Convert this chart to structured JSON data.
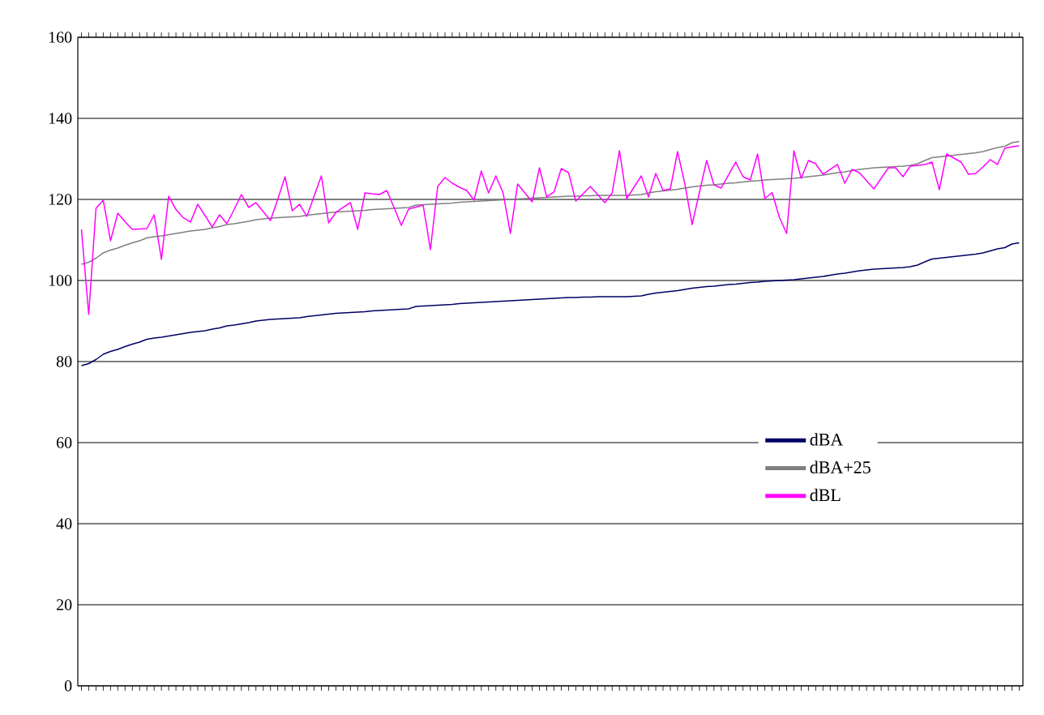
{
  "chart_data": {
    "type": "line",
    "categories": [
      null,
      null,
      null,
      null,
      null,
      null,
      null,
      null,
      null,
      null,
      null,
      null,
      null,
      null,
      null,
      null,
      null,
      null,
      null,
      null,
      null,
      null,
      null,
      null,
      null,
      null,
      null,
      null,
      null,
      null,
      null,
      null,
      null,
      null,
      null,
      null,
      null,
      null,
      null,
      null,
      null,
      null,
      null,
      null,
      null,
      null,
      null,
      null,
      null,
      null,
      null,
      null,
      null,
      null,
      null,
      null,
      null,
      null,
      null,
      null,
      null,
      null,
      null,
      null,
      null,
      null,
      null,
      null,
      null,
      null,
      null,
      null,
      null,
      null,
      null,
      null,
      null,
      null,
      null,
      null,
      null,
      null,
      null,
      null,
      null,
      null,
      null,
      null,
      null,
      null,
      null,
      null,
      null,
      null,
      null,
      null,
      null,
      null,
      null,
      null,
      null,
      null,
      null,
      null,
      null,
      null,
      null,
      null,
      null,
      null,
      null,
      null,
      null,
      null,
      null,
      null,
      null,
      null,
      null,
      null,
      null,
      null,
      null,
      null,
      null,
      null,
      null,
      null,
      null,
      null
    ],
    "series": [
      {
        "name": "dBA",
        "color": "#000066",
        "values": [
          79,
          79.5,
          80.5,
          81.8,
          82.5,
          83,
          83.7,
          84.3,
          84.8,
          85.5,
          85.8,
          86,
          86.3,
          86.6,
          86.9,
          87.2,
          87.4,
          87.6,
          88,
          88.3,
          88.8,
          89,
          89.3,
          89.6,
          90,
          90.2,
          90.4,
          90.5,
          90.6,
          90.7,
          90.8,
          91.1,
          91.3,
          91.5,
          91.7,
          91.9,
          92,
          92.1,
          92.2,
          92.3,
          92.5,
          92.6,
          92.7,
          92.8,
          92.9,
          93,
          93.6,
          93.7,
          93.8,
          93.9,
          94,
          94.1,
          94.3,
          94.4,
          94.5,
          94.6,
          94.7,
          94.8,
          94.9,
          95,
          95.1,
          95.2,
          95.3,
          95.4,
          95.5,
          95.6,
          95.7,
          95.8,
          95.8,
          95.9,
          95.9,
          96,
          96,
          96,
          96,
          96,
          96.1,
          96.2,
          96.6,
          96.9,
          97.1,
          97.3,
          97.5,
          97.8,
          98.1,
          98.3,
          98.5,
          98.6,
          98.8,
          99,
          99.1,
          99.3,
          99.5,
          99.6,
          99.8,
          99.9,
          100,
          100.1,
          100.2,
          100.4,
          100.6,
          100.8,
          101,
          101.3,
          101.6,
          101.8,
          102.1,
          102.4,
          102.6,
          102.8,
          102.9,
          103,
          103.1,
          103.2,
          103.4,
          103.8,
          104.6,
          105.3,
          105.5,
          105.7,
          105.9,
          106.1,
          106.3,
          106.5,
          106.8,
          107.3,
          107.8,
          108.1,
          109,
          109.3
        ]
      },
      {
        "name": "dBA+25",
        "color": "#808080",
        "values": [
          104,
          104.5,
          105.5,
          106.8,
          107.5,
          108,
          108.7,
          109.3,
          109.8,
          110.5,
          110.8,
          111,
          111.3,
          111.6,
          111.9,
          112.2,
          112.4,
          112.6,
          113,
          113.3,
          113.8,
          114,
          114.3,
          114.6,
          115,
          115.2,
          115.4,
          115.5,
          115.6,
          115.7,
          115.8,
          116.1,
          116.3,
          116.5,
          116.7,
          116.9,
          117,
          117.1,
          117.2,
          117.3,
          117.5,
          117.6,
          117.7,
          117.8,
          117.9,
          118,
          118.6,
          118.7,
          118.8,
          118.9,
          119,
          119.1,
          119.3,
          119.4,
          119.5,
          119.6,
          119.7,
          119.8,
          119.9,
          120,
          120.1,
          120.2,
          120.3,
          120.4,
          120.5,
          120.6,
          120.7,
          120.8,
          120.8,
          120.9,
          120.9,
          121,
          121,
          121,
          121,
          121,
          121.1,
          121.2,
          121.6,
          121.9,
          122.1,
          122.3,
          122.5,
          122.8,
          123.1,
          123.3,
          123.5,
          123.6,
          123.8,
          124,
          124.1,
          124.3,
          124.5,
          124.6,
          124.8,
          124.9,
          125,
          125.1,
          125.2,
          125.4,
          125.6,
          125.8,
          126,
          126.3,
          126.6,
          126.8,
          127.1,
          127.4,
          127.6,
          127.8,
          127.9,
          128,
          128.1,
          128.2,
          128.4,
          128.8,
          129.6,
          130.3,
          130.5,
          130.7,
          130.9,
          131.1,
          131.3,
          131.5,
          131.8,
          132.3,
          132.8,
          133.1,
          134,
          134.3
        ]
      },
      {
        "name": "dBL",
        "color": "#ff00ff",
        "values": [
          112.6,
          91.6,
          117.8,
          119.8,
          109.8,
          116.6,
          114.5,
          112.6,
          112.7,
          112.8,
          116.2,
          105.2,
          120.8,
          117.5,
          115.5,
          114.4,
          118.8,
          116,
          113.2,
          116.2,
          114,
          117.5,
          121.2,
          118,
          119.2,
          117,
          114.8,
          120,
          125.6,
          117.2,
          118.8,
          115.8,
          120.8,
          125.8,
          114.2,
          116.8,
          118,
          119.2,
          112.6,
          121.6,
          121.4,
          121.2,
          122.2,
          118,
          113.6,
          117.6,
          118.1,
          118.6,
          107.6,
          123.2,
          125.4,
          124,
          123,
          122.2,
          119.8,
          127,
          121.6,
          125.8,
          121.6,
          111.6,
          123.8,
          121.6,
          119.4,
          127.8,
          120.6,
          121.8,
          127.6,
          126.6,
          119.6,
          121.4,
          123.2,
          121.2,
          119.2,
          121.6,
          132,
          120.2,
          123,
          125.8,
          120.6,
          126.4,
          122.2,
          122.6,
          131.8,
          123.8,
          113.8,
          121.7,
          129.6,
          123.6,
          122.8,
          126,
          129.2,
          125.6,
          124.8,
          131.2,
          120.2,
          121.7,
          115.6,
          111.6,
          132,
          125.2,
          129.6,
          128.8,
          126.2,
          127.4,
          128.6,
          124,
          127.4,
          126.6,
          124.6,
          122.6,
          125.2,
          127.8,
          127.8,
          125.6,
          128.2,
          128.4,
          128.6,
          129.2,
          122.4,
          131.2,
          130.2,
          129.2,
          126.2,
          126.4,
          128,
          129.8,
          128.6,
          132.6,
          133,
          133.2
        ]
      }
    ],
    "ylim": [
      0,
      160
    ],
    "yticks": [
      0,
      20,
      40,
      60,
      80,
      100,
      120,
      140,
      160
    ],
    "grid": "y",
    "legend": "right",
    "marker": "none",
    "line_style": "solid"
  }
}
